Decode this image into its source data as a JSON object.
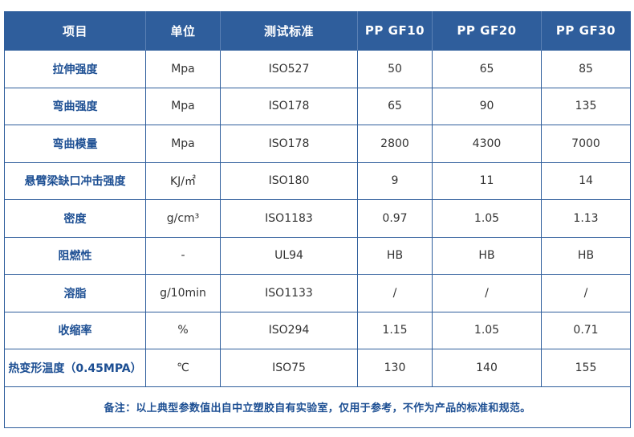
{
  "table": {
    "headers": [
      "项目",
      "单位",
      "测试标准",
      "PP GF10",
      "PP GF20",
      "PP GF30"
    ],
    "rows": [
      [
        "拉伸强度",
        "Mpa",
        "ISO527",
        "50",
        "65",
        "85"
      ],
      [
        "弯曲强度",
        "Mpa",
        "ISO178",
        "65",
        "90",
        "135"
      ],
      [
        "弯曲模量",
        "Mpa",
        "ISO178",
        "2800",
        "4300",
        "7000"
      ],
      [
        "悬臂梁缺口冲击强度",
        "KJ/㎡",
        "ISO180",
        "9",
        "11",
        "14"
      ],
      [
        "密度",
        "g/cm³",
        "ISO1183",
        "0.97",
        "1.05",
        "1.13"
      ],
      [
        "阻燃性",
        "-",
        "UL94",
        "HB",
        "HB",
        "HB"
      ],
      [
        "溶脂",
        "g/10min",
        "ISO1133",
        "/",
        "/",
        "/"
      ],
      [
        "收缩率",
        "%",
        "ISO294",
        "1.15",
        "1.05",
        "0.71"
      ],
      [
        "热变形温度（0.45MPA）",
        "℃",
        "ISO75",
        "130",
        "140",
        "155"
      ]
    ],
    "note": "备注：以上典型参数值出自中立塑胶自有实验室，仅用于参考，不作为产品的标准和规范。"
  },
  "colors": {
    "header_bg": "#2f5e9c",
    "header_text": "#ffffff",
    "border": "#2f5e9c",
    "label_text": "#1d4f93",
    "value_text": "#333333"
  }
}
